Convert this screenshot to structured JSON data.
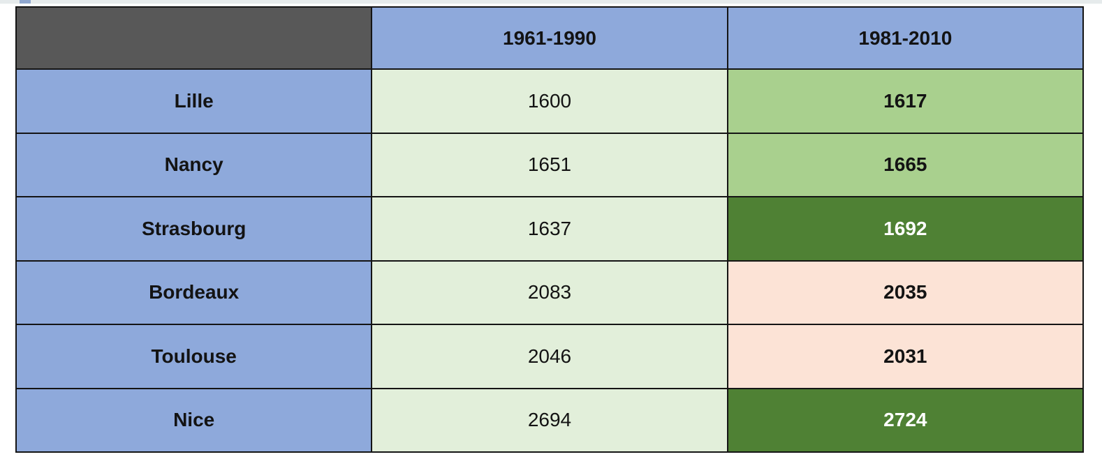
{
  "table": {
    "header": {
      "blank": "",
      "period1": "1961-1990",
      "period2": "1981-2010"
    },
    "rows": [
      {
        "city": "Lille",
        "period1": "1600",
        "period2": "1617",
        "highlight_bg": "#a9d08e",
        "highlight_text": "#131313"
      },
      {
        "city": "Nancy",
        "period1": "1651",
        "period2": "1665",
        "highlight_bg": "#a9d08e",
        "highlight_text": "#131313"
      },
      {
        "city": "Strasbourg",
        "period1": "1637",
        "period2": "1692",
        "highlight_bg": "#4f8134",
        "highlight_text": "#ffffff"
      },
      {
        "city": "Bordeaux",
        "period1": "2083",
        "period2": "2035",
        "highlight_bg": "#fce3d6",
        "highlight_text": "#131313"
      },
      {
        "city": "Toulouse",
        "period1": "2046",
        "period2": "2031",
        "highlight_bg": "#fce3d6",
        "highlight_text": "#131313"
      },
      {
        "city": "Nice",
        "period1": "2694",
        "period2": "2724",
        "highlight_bg": "#4f8134",
        "highlight_text": "#ffffff"
      }
    ],
    "colors": {
      "header_blue": "#8ea9db",
      "blank_header": "#585858",
      "light_green": "#e2efda",
      "mid_green": "#a9d08e",
      "dark_green": "#4f8134",
      "pink": "#fce3d6",
      "border": "#141414",
      "text_dark": "#131313",
      "text_light": "#ffffff",
      "top_strip": "#e6ebec",
      "strip_accent": "#8fa7cf"
    }
  },
  "chart_data": {
    "type": "table",
    "title": "",
    "columns": [
      "",
      "1961-1990",
      "1981-2010"
    ],
    "rows": [
      [
        "Lille",
        1600,
        1617
      ],
      [
        "Nancy",
        1651,
        1665
      ],
      [
        "Strasbourg",
        1637,
        1692
      ],
      [
        "Bordeaux",
        2083,
        2035
      ],
      [
        "Toulouse",
        2046,
        2031
      ],
      [
        "Nice",
        2694,
        2724
      ]
    ],
    "cell_highlights": {
      "1981-2010": {
        "Lille": "mid_green",
        "Nancy": "mid_green",
        "Strasbourg": "dark_green",
        "Bordeaux": "pink",
        "Toulouse": "pink",
        "Nice": "dark_green"
      }
    }
  }
}
